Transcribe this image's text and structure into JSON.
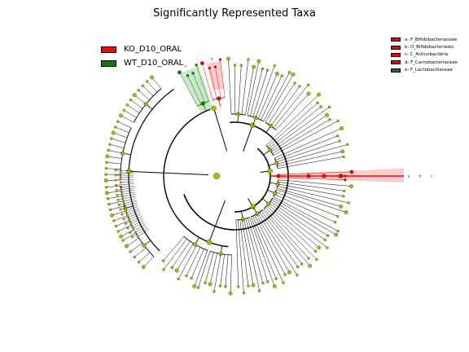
{
  "title": "Significantly Represented Taxa",
  "legend": [
    {
      "label": "KO_D10_ORAL",
      "color": "#ff0000"
    },
    {
      "label": "WT_D10_ORAL",
      "color": "#008000"
    }
  ],
  "clade_key": [
    {
      "text": "a: F_Bifidobacteriaceae",
      "color": "#ff0000"
    },
    {
      "text": "b: O_Bifidobacteriales",
      "color": "#ff0000"
    },
    {
      "text": "c: C_Actinobacteria",
      "color": "#ff0000"
    },
    {
      "text": "d: F_Carnobacteriaceae",
      "color": "#ff0000"
    },
    {
      "text": "e: F_Lactobacillaceae",
      "color": "#008000"
    }
  ],
  "clade_marks": [
    "a",
    "b",
    "c",
    "d",
    "e"
  ],
  "colors": {
    "ko": "#ff0000",
    "wt": "#008000",
    "neutral": "#b5b800"
  }
}
